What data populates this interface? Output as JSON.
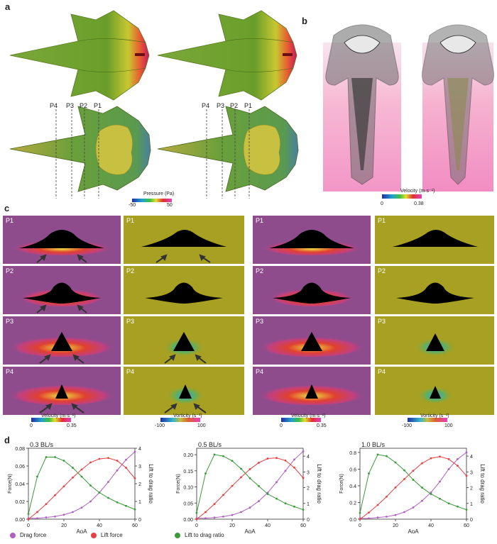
{
  "panels": {
    "a": "a",
    "b": "b",
    "c": "c",
    "d": "d"
  },
  "panel_a": {
    "positions": [
      "P4",
      "P3",
      "P2",
      "P1"
    ],
    "colorbar": {
      "title": "Pressure (Pa)",
      "min": "-50",
      "max": "50"
    }
  },
  "panel_b": {
    "colorbar": {
      "title": "Velocity (m·s⁻¹)",
      "min": "0",
      "max": "0.38"
    }
  },
  "panel_c": {
    "rows": [
      "P1",
      "P2",
      "P3",
      "P4"
    ],
    "velocity_colorbar": {
      "title": "Velocity (m·s⁻¹)",
      "min": "0",
      "max": "0.35"
    },
    "vorticity_colorbar": {
      "title": "Vorticity (s⁻¹)",
      "min": "-100",
      "max": "100"
    }
  },
  "legend": {
    "drag": "Drag force",
    "lift": "Lift force",
    "ratio": "Lift to drag ratio"
  },
  "colors": {
    "drag": "#b060c0",
    "lift": "#e84040",
    "ratio": "#3a9a3a",
    "vel_bg": "#8e4c8c",
    "vort_bg": "#a8a022"
  },
  "chart_data": [
    {
      "type": "line",
      "title": "0.3 BL/s",
      "xlabel": "AoA",
      "ylabel": "Force(N)",
      "y2label": "Lift to drag ratio",
      "x": [
        0,
        5,
        10,
        15,
        20,
        25,
        30,
        35,
        40,
        45,
        50,
        55,
        60
      ],
      "xlim": [
        0,
        60
      ],
      "ylim": [
        0,
        0.08
      ],
      "yticks": [
        "0.00",
        "0.02",
        "0.04",
        "0.06",
        "0.08"
      ],
      "y2lim": [
        0,
        4
      ],
      "series": [
        {
          "name": "Drag force",
          "axis": "left",
          "values": [
            0.001,
            0.001,
            0.002,
            0.003,
            0.005,
            0.008,
            0.013,
            0.02,
            0.03,
            0.042,
            0.055,
            0.067,
            0.076
          ]
        },
        {
          "name": "Lift force",
          "axis": "left",
          "values": [
            0.0,
            0.008,
            0.017,
            0.027,
            0.037,
            0.047,
            0.056,
            0.064,
            0.068,
            0.069,
            0.066,
            0.058,
            0.046
          ]
        },
        {
          "name": "Lift to drag ratio",
          "axis": "right",
          "values": [
            0.3,
            2.4,
            3.5,
            3.5,
            3.3,
            2.9,
            2.4,
            1.9,
            1.5,
            1.2,
            0.95,
            0.75,
            0.55
          ]
        }
      ]
    },
    {
      "type": "line",
      "title": "0.5 BL/s",
      "xlabel": "AoA",
      "ylabel": "Force(N)",
      "y2label": "Lift to drag ratio",
      "x": [
        0,
        5,
        10,
        15,
        20,
        25,
        30,
        35,
        40,
        45,
        50,
        55,
        60
      ],
      "xlim": [
        0,
        60
      ],
      "ylim": [
        0,
        0.22
      ],
      "yticks": [
        "0.00",
        "0.05",
        "0.10",
        "0.15",
        "0.20"
      ],
      "y2lim": [
        0,
        4.5
      ],
      "series": [
        {
          "name": "Drag force",
          "axis": "left",
          "values": [
            0.003,
            0.003,
            0.005,
            0.008,
            0.013,
            0.022,
            0.036,
            0.056,
            0.082,
            0.115,
            0.15,
            0.185,
            0.21
          ]
        },
        {
          "name": "Lift force",
          "axis": "left",
          "values": [
            0.0,
            0.022,
            0.047,
            0.075,
            0.103,
            0.13,
            0.155,
            0.175,
            0.188,
            0.19,
            0.182,
            0.16,
            0.128
          ]
        },
        {
          "name": "Lift to drag ratio",
          "axis": "right",
          "values": [
            0.4,
            2.9,
            4.1,
            4.0,
            3.7,
            3.2,
            2.6,
            2.1,
            1.6,
            1.3,
            1.0,
            0.8,
            0.6
          ]
        }
      ]
    },
    {
      "type": "line",
      "title": "1.0 BL/s",
      "xlabel": "AoA",
      "ylabel": "Force(N)",
      "y2label": "Lift to drag ratio",
      "x": [
        0,
        5,
        10,
        15,
        20,
        25,
        30,
        35,
        40,
        45,
        50,
        55,
        60
      ],
      "xlim": [
        0,
        60
      ],
      "ylim": [
        0,
        0.85
      ],
      "yticks": [
        "0.0",
        "0.2",
        "0.4",
        "0.6",
        "0.8"
      ],
      "y2lim": [
        0,
        4.5
      ],
      "series": [
        {
          "name": "Drag force",
          "axis": "left",
          "values": [
            0.01,
            0.01,
            0.02,
            0.03,
            0.05,
            0.085,
            0.14,
            0.22,
            0.32,
            0.45,
            0.6,
            0.72,
            0.8
          ]
        },
        {
          "name": "Lift force",
          "axis": "left",
          "values": [
            0.0,
            0.08,
            0.17,
            0.27,
            0.38,
            0.48,
            0.58,
            0.67,
            0.73,
            0.75,
            0.72,
            0.64,
            0.52
          ]
        },
        {
          "name": "Lift to drag ratio",
          "axis": "right",
          "values": [
            0.4,
            2.9,
            4.1,
            4.0,
            3.6,
            3.1,
            2.5,
            2.0,
            1.6,
            1.3,
            1.0,
            0.8,
            0.6
          ]
        }
      ]
    }
  ]
}
